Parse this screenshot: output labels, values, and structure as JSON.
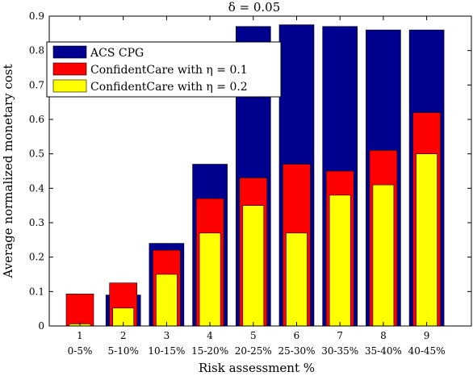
{
  "chart_data": {
    "type": "bar",
    "title": "δ = 0.05",
    "xlabel": "Risk assessment %",
    "ylabel": "Average normalized monetary cost",
    "ylim": [
      0,
      0.9
    ],
    "yticks": [
      "0",
      "0.1",
      "0.2",
      "0.3",
      "0.4",
      "0.5",
      "0.6",
      "0.7",
      "0.8",
      "0.9"
    ],
    "categories": [
      "1",
      "2",
      "3",
      "4",
      "5",
      "6",
      "7",
      "8",
      "9"
    ],
    "category_ranges": [
      "0-5%",
      "5-10%",
      "10-15%",
      "15-20%",
      "20-25%",
      "25-30%",
      "30-35%",
      "35-40%",
      "40-45%"
    ],
    "legend_position": "top-left",
    "grid": false,
    "series": [
      {
        "name": "ACS CPG",
        "color": "#00008f",
        "values": [
          0,
          0.09,
          0.24,
          0.47,
          0.87,
          0.875,
          0.87,
          0.86,
          0.86
        ]
      },
      {
        "name": "ConfidentCare with η = 0.1",
        "color": "#ff0000",
        "values": [
          0.093,
          0.125,
          0.22,
          0.37,
          0.43,
          0.47,
          0.45,
          0.51,
          0.62
        ]
      },
      {
        "name": "ConfidentCare with η = 0.2",
        "color": "#ffff00",
        "values": [
          0.006,
          0.052,
          0.15,
          0.27,
          0.35,
          0.27,
          0.38,
          0.41,
          0.5
        ]
      }
    ]
  }
}
